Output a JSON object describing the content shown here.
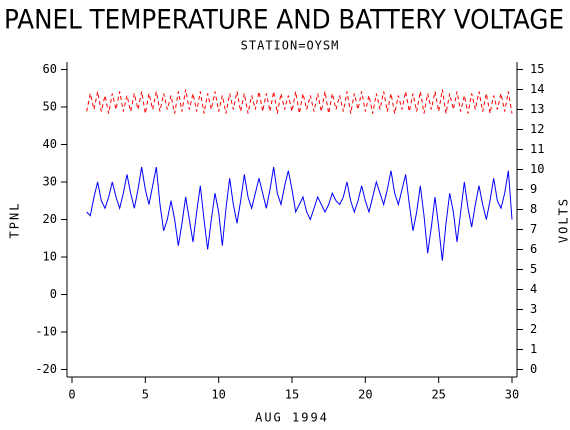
{
  "chart_data": {
    "type": "line",
    "title": "PANEL TEMPERATURE AND BATTERY VOLTAGE",
    "subtitle": "STATION=OYSM",
    "xlabel": "AUG 1994",
    "ylabel": "TPNL",
    "y2label": "VOLTS",
    "xlim": [
      -0.34,
      30.34
    ],
    "xticks": [
      0,
      5,
      10,
      15,
      20,
      25,
      30
    ],
    "ylim": [
      -22,
      62
    ],
    "yticks": [
      -20,
      -10,
      0,
      10,
      20,
      30,
      40,
      50,
      60
    ],
    "y2lim": [
      -0.375,
      15.375
    ],
    "y2ticks": [
      0,
      1,
      2,
      3,
      4,
      5,
      6,
      7,
      8,
      9,
      10,
      11,
      12,
      13,
      14,
      15
    ],
    "x": [
      1,
      1.25,
      1.5,
      1.75,
      2,
      2.25,
      2.5,
      2.75,
      3,
      3.25,
      3.5,
      3.75,
      4,
      4.25,
      4.5,
      4.75,
      5,
      5.25,
      5.5,
      5.75,
      6,
      6.25,
      6.5,
      6.75,
      7,
      7.25,
      7.5,
      7.75,
      8,
      8.25,
      8.5,
      8.75,
      9,
      9.25,
      9.5,
      9.75,
      10,
      10.25,
      10.5,
      10.75,
      11,
      11.25,
      11.5,
      11.75,
      12,
      12.25,
      12.5,
      12.75,
      13,
      13.25,
      13.5,
      13.75,
      14,
      14.25,
      14.5,
      14.75,
      15,
      15.25,
      15.5,
      15.75,
      16,
      16.25,
      16.5,
      16.75,
      17,
      17.25,
      17.5,
      17.75,
      18,
      18.25,
      18.5,
      18.75,
      19,
      19.25,
      19.5,
      19.75,
      20,
      20.25,
      20.5,
      20.75,
      21,
      21.25,
      21.5,
      21.75,
      22,
      22.25,
      22.5,
      22.75,
      23,
      23.25,
      23.5,
      23.75,
      24,
      24.25,
      24.5,
      24.75,
      25,
      25.25,
      25.5,
      25.75,
      26,
      26.25,
      26.5,
      26.75,
      27,
      27.25,
      27.5,
      27.75,
      28,
      28.25,
      28.5,
      28.75,
      29,
      29.25,
      29.5,
      29.75,
      30
    ],
    "series": [
      {
        "name": "TPNL",
        "color": "#0000ff",
        "dashed": false,
        "values": [
          22,
          21,
          26,
          30,
          25,
          23,
          26,
          30,
          26,
          23,
          27,
          32,
          27,
          23,
          28,
          34,
          28,
          24,
          29,
          34,
          24,
          17,
          20,
          25,
          20,
          13,
          19,
          26,
          20,
          14,
          22,
          29,
          20,
          12,
          20,
          27,
          22,
          13,
          23,
          31,
          24,
          19,
          25,
          32,
          26,
          23,
          27,
          31,
          27,
          23,
          28,
          34,
          27,
          24,
          29,
          33,
          28,
          22,
          24,
          26,
          22,
          20,
          23,
          26,
          24,
          22,
          24,
          27,
          25,
          24,
          26,
          30,
          25,
          22,
          25,
          29,
          25,
          22,
          26,
          30,
          27,
          24,
          28,
          33,
          27,
          24,
          28,
          32,
          24,
          17,
          22,
          29,
          21,
          11,
          18,
          26,
          18,
          9,
          19,
          27,
          22,
          14,
          22,
          30,
          23,
          18,
          24,
          29,
          24,
          20,
          25,
          31,
          25,
          23,
          27,
          33,
          20
        ]
      },
      {
        "name": "VOLTS",
        "color": "#ff0000",
        "dashed": true,
        "axis": "y2",
        "values": [
          12.9,
          13.8,
          13.0,
          13.9,
          12.9,
          13.7,
          12.8,
          13.8,
          13.0,
          13.9,
          12.9,
          13.7,
          12.9,
          13.8,
          13.0,
          13.9,
          12.8,
          13.8,
          13.0,
          13.9,
          12.9,
          13.8,
          13.0,
          13.7,
          12.8,
          13.9,
          12.9,
          14.0,
          13.0,
          13.8,
          12.9,
          13.9,
          12.8,
          13.8,
          13.0,
          13.9,
          12.9,
          13.7,
          12.8,
          13.8,
          13.0,
          13.9,
          12.9,
          13.8,
          12.8,
          13.7,
          13.0,
          13.9,
          12.9,
          13.8,
          12.9,
          13.9,
          12.8,
          13.8,
          13.0,
          13.7,
          12.9,
          13.9,
          12.8,
          13.8,
          13.0,
          13.7,
          12.9,
          13.8,
          12.9,
          13.9,
          12.8,
          13.8,
          13.0,
          13.7,
          12.9,
          13.9,
          12.8,
          13.8,
          13.0,
          13.9,
          12.9,
          13.7,
          12.8,
          13.8,
          13.0,
          13.9,
          12.9,
          13.8,
          12.8,
          13.7,
          13.0,
          13.9,
          12.9,
          13.8,
          12.9,
          13.9,
          12.8,
          13.8,
          13.0,
          13.9,
          12.9,
          14.0,
          12.8,
          13.8,
          13.0,
          13.9,
          12.9,
          13.7,
          12.8,
          13.8,
          13.0,
          13.9,
          12.9,
          13.8,
          12.8,
          13.7,
          13.0,
          13.8,
          12.9,
          13.9,
          12.8
        ]
      }
    ]
  }
}
